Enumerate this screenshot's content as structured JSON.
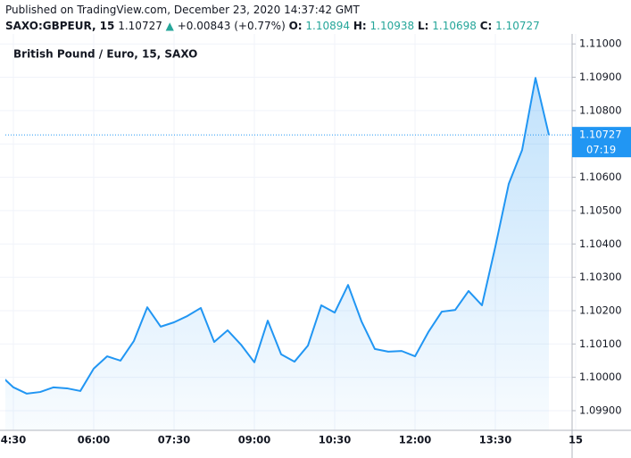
{
  "chart_data": {
    "type": "area",
    "published": "Published on TradingView.com, December 23, 2020 14:37:42 GMT",
    "symbol": "SAXO:GBPEUR, 15",
    "title": "British Pound / Euro, 15, SAXO",
    "last_price": {
      "value": 1.10727,
      "label": "1.10727"
    },
    "change_arrow": "▲",
    "change": "+0.00843 (+0.77%)",
    "ohlc": [
      {
        "key": "O:",
        "value": "1.10894"
      },
      {
        "key": "H:",
        "value": "1.10938"
      },
      {
        "key": "L:",
        "value": "1.10698"
      },
      {
        "key": "C:",
        "value": "1.10727"
      }
    ],
    "countdown": "07:19",
    "color": "#2196f3",
    "grid": true,
    "categories": [
      null,
      "4:30",
      null,
      null,
      null,
      null,
      null,
      "06:00",
      null,
      null,
      null,
      null,
      null,
      "07:30",
      null,
      null,
      null,
      null,
      null,
      "09:00",
      null,
      null,
      null,
      null,
      null,
      "10:30",
      null,
      null,
      null,
      null,
      null,
      "12:00",
      null,
      null,
      null,
      null,
      null,
      "13:30",
      null,
      null,
      null,
      null,
      null,
      "15"
    ],
    "values": [
      1.10007,
      1.0997,
      1.09951,
      1.09956,
      1.0997,
      1.09967,
      1.09959,
      1.10026,
      1.10063,
      1.1005,
      1.10109,
      1.1021,
      1.10152,
      1.10165,
      1.10184,
      1.10208,
      1.10106,
      1.10141,
      1.10098,
      1.10045,
      1.1017,
      1.10069,
      1.10047,
      1.10095,
      1.10216,
      1.10194,
      1.10277,
      1.10168,
      1.10085,
      1.10077,
      1.10079,
      1.10063,
      1.10136,
      1.10197,
      1.10202,
      1.10259,
      1.10216,
      1.10392,
      1.1058,
      1.10682,
      1.10898,
      1.10727,
      null,
      null
    ],
    "ylim": [
      1.09841,
      1.1103
    ],
    "yticks": [
      {
        "value": 1.099,
        "label": "1.09900"
      },
      {
        "value": 1.1,
        "label": "1.10000"
      },
      {
        "value": 1.101,
        "label": "1.10100"
      },
      {
        "value": 1.102,
        "label": "1.10200"
      },
      {
        "value": 1.103,
        "label": "1.10300"
      },
      {
        "value": 1.104,
        "label": "1.10400"
      },
      {
        "value": 1.105,
        "label": "1.10500"
      },
      {
        "value": 1.106,
        "label": "1.10600"
      },
      {
        "value": 1.107,
        "label": "1.10700"
      },
      {
        "value": 1.108,
        "label": "1.10800"
      },
      {
        "value": 1.109,
        "label": "1.10900"
      },
      {
        "value": 1.11,
        "label": "1.11000"
      }
    ]
  }
}
